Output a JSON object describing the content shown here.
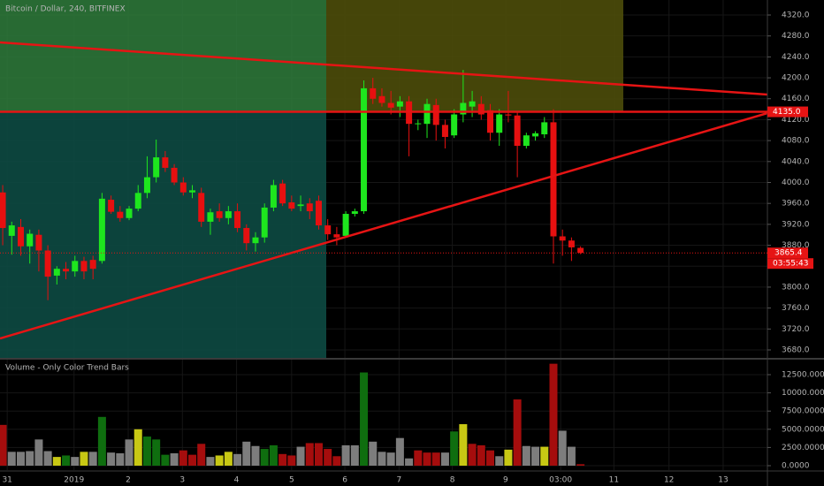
{
  "chart_data": [
    {
      "type": "candlestick",
      "title": "Bitcoin / Dollar, 240, BITFINEX",
      "up_color": "#1ee61e",
      "down_color": "#e61010",
      "xlim": [
        -0.3,
        84.7
      ],
      "xticks": [
        {
          "value": 0.5,
          "label": "31"
        },
        {
          "value": 7.9,
          "label": "2019"
        },
        {
          "value": 13.9,
          "label": "2"
        },
        {
          "value": 19.9,
          "label": "3"
        },
        {
          "value": 25.9,
          "label": "4"
        },
        {
          "value": 32.0,
          "label": "5"
        },
        {
          "value": 37.9,
          "label": "6"
        },
        {
          "value": 43.9,
          "label": "7"
        },
        {
          "value": 49.8,
          "label": "8"
        },
        {
          "value": 55.7,
          "label": "9"
        },
        {
          "value": 61.8,
          "label": "03:00"
        },
        {
          "value": 67.7,
          "label": "11"
        },
        {
          "value": 73.8,
          "label": "12"
        },
        {
          "value": 79.8,
          "label": "13"
        }
      ],
      "ylim": [
        3664.8,
        4348.7
      ],
      "yticks": [
        {
          "value": 3680,
          "label": "3680.0"
        },
        {
          "value": 3720,
          "label": "3720.0"
        },
        {
          "value": 3760,
          "label": "3760.0"
        },
        {
          "value": 3800,
          "label": "3800.0"
        },
        {
          "value": 3840,
          "label": "3840.0"
        },
        {
          "value": 3880,
          "label": "3880.0"
        },
        {
          "value": 3920,
          "label": "3920.0"
        },
        {
          "value": 3960,
          "label": "3960.0"
        },
        {
          "value": 4000,
          "label": "4000.0"
        },
        {
          "value": 4040,
          "label": "4040.0"
        },
        {
          "value": 4080,
          "label": "4080.0"
        },
        {
          "value": 4120,
          "label": "4120.0"
        },
        {
          "value": 4160,
          "label": "4160.0"
        },
        {
          "value": 4200,
          "label": "4200.0"
        },
        {
          "value": 4240,
          "label": "4240.0"
        },
        {
          "value": 4280,
          "label": "4280.0"
        },
        {
          "value": 4320,
          "label": "4320.0"
        }
      ],
      "open": [
        3981,
        3898,
        3915,
        3878,
        3900,
        3870,
        3822,
        3835,
        3830,
        3850,
        3852,
        3850,
        3967,
        3944,
        3932,
        3950,
        3980,
        4010,
        4048,
        4028,
        4000,
        3981,
        3980,
        3925,
        3945,
        3932,
        3945,
        3913,
        3884,
        3895,
        3952,
        3998,
        3962,
        3955,
        3960,
        3965,
        3918,
        3901,
        3898,
        3940,
        3945,
        4180,
        4165,
        4152,
        4145,
        4155,
        4112,
        4112,
        4148,
        4110,
        4090,
        4130,
        4145,
        4150,
        4138,
        4095,
        4130,
        4128,
        4070,
        4088,
        4092,
        4115,
        3897,
        3889,
        3875
      ],
      "high": [
        3995,
        3925,
        3930,
        3910,
        3910,
        3880,
        3840,
        3848,
        3860,
        3858,
        3860,
        3980,
        3975,
        3955,
        3955,
        3995,
        4050,
        4082,
        4060,
        4035,
        4010,
        3995,
        3990,
        3950,
        3960,
        3955,
        3960,
        3920,
        3905,
        3960,
        4005,
        4005,
        3975,
        3975,
        3970,
        3975,
        3930,
        3915,
        3945,
        3950,
        4195,
        4200,
        4180,
        4175,
        4165,
        4165,
        4120,
        4160,
        4160,
        4120,
        4140,
        4215,
        4175,
        4165,
        4150,
        4140,
        4175,
        4135,
        4095,
        4098,
        4125,
        4140,
        3910,
        3895,
        3878
      ],
      "low": [
        3880,
        3862,
        3860,
        3845,
        3830,
        3775,
        3805,
        3815,
        3820,
        3815,
        3815,
        3845,
        3940,
        3925,
        3928,
        3945,
        3970,
        4000,
        4020,
        3995,
        3975,
        3970,
        3915,
        3900,
        3925,
        3920,
        3905,
        3870,
        3868,
        3885,
        3945,
        3955,
        3945,
        3945,
        3930,
        3910,
        3890,
        3880,
        3895,
        3935,
        3940,
        4150,
        4145,
        4130,
        4125,
        4050,
        4100,
        4085,
        4080,
        4065,
        4085,
        4115,
        4125,
        4120,
        4080,
        4070,
        4115,
        4010,
        4065,
        4080,
        4085,
        3845,
        3860,
        3850,
        3863
      ],
      "close": [
        3913,
        3918,
        3878,
        3902,
        3870,
        3820,
        3835,
        3830,
        3850,
        3830,
        3835,
        3969,
        3944,
        3932,
        3950,
        3980,
        4010,
        4048,
        4028,
        4000,
        3981,
        3985,
        3925,
        3943,
        3932,
        3945,
        3913,
        3884,
        3895,
        3952,
        3995,
        3960,
        3950,
        3958,
        3945,
        3918,
        3901,
        3895,
        3940,
        3945,
        4180,
        4160,
        4152,
        4143,
        4155,
        4112,
        4113,
        4150,
        4110,
        4087,
        4130,
        4152,
        4155,
        4130,
        4095,
        4130,
        4128,
        4070,
        4090,
        4094,
        4115,
        3897,
        3889,
        3876,
        3865.4
      ],
      "hline": {
        "value": 4135,
        "label": "4135.0"
      },
      "last_price": {
        "value": 3865.4,
        "label": "3865.4"
      },
      "countdown": "03:55:43"
    },
    {
      "type": "bar",
      "title": "Volume - Only Color Trend Bars",
      "xlim": [
        -0.3,
        84.7
      ],
      "ylim": [
        -607,
        14442
      ],
      "yticks": [
        {
          "value": 0,
          "label": "0.0000"
        },
        {
          "value": 2500,
          "label": "2500.0000"
        },
        {
          "value": 5000,
          "label": "5000.0000"
        },
        {
          "value": 7500,
          "label": "7500.0000"
        },
        {
          "value": 10000,
          "label": "10000.0000"
        },
        {
          "value": 12500,
          "label": "12500.0000"
        }
      ],
      "values": [
        5600,
        1900,
        1900,
        2000,
        3600,
        2000,
        1200,
        1400,
        1200,
        1900,
        1900,
        6700,
        1800,
        1700,
        3600,
        5000,
        4000,
        3600,
        1500,
        1700,
        2100,
        1500,
        3000,
        1200,
        1400,
        1900,
        1600,
        3300,
        2700,
        2300,
        2800,
        1600,
        1400,
        2600,
        3100,
        3100,
        2300,
        1300,
        2800,
        2800,
        12800,
        3300,
        1900,
        1800,
        3800,
        1000,
        2100,
        1800,
        1800,
        1800,
        4700,
        5700,
        3000,
        2800,
        2100,
        1300,
        2200,
        9100,
        2700,
        2600,
        2600,
        14000,
        4800,
        2600,
        200
      ],
      "colors": [
        "#a50d0d",
        "#7d7d7d",
        "#7d7d7d",
        "#7d7d7d",
        "#7d7d7d",
        "#7d7d7d",
        "#c8c814",
        "#0f6e0f",
        "#7d7d7d",
        "#c8c814",
        "#7d7d7d",
        "#0f6e0f",
        "#7d7d7d",
        "#7d7d7d",
        "#7d7d7d",
        "#c8c814",
        "#0f6e0f",
        "#0f6e0f",
        "#0f6e0f",
        "#7d7d7d",
        "#a50d0d",
        "#a50d0d",
        "#a50d0d",
        "#7d7d7d",
        "#c8c814",
        "#c8c814",
        "#7d7d7d",
        "#7d7d7d",
        "#7d7d7d",
        "#0f6e0f",
        "#0f6e0f",
        "#a50d0d",
        "#a50d0d",
        "#7d7d7d",
        "#a50d0d",
        "#a50d0d",
        "#a50d0d",
        "#a50d0d",
        "#7d7d7d",
        "#7d7d7d",
        "#0f6e0f",
        "#7d7d7d",
        "#7d7d7d",
        "#7d7d7d",
        "#7d7d7d",
        "#7d7d7d",
        "#a50d0d",
        "#a50d0d",
        "#a50d0d",
        "#7d7d7d",
        "#0f6e0f",
        "#c8c814",
        "#a50d0d",
        "#a50d0d",
        "#a50d0d",
        "#7d7d7d",
        "#c8c814",
        "#a50d0d",
        "#7d7d7d",
        "#7d7d7d",
        "#c8c814",
        "#a50d0d",
        "#7d7d7d",
        "#7d7d7d",
        "#a50d0d"
      ]
    }
  ]
}
